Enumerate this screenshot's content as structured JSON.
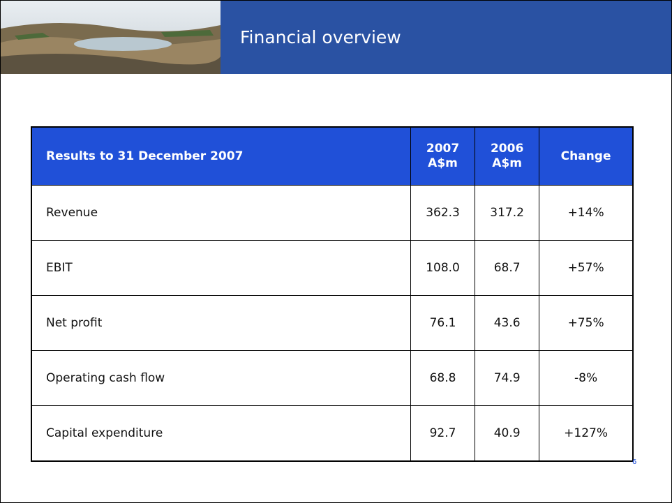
{
  "header": {
    "title": "Financial overview"
  },
  "table": {
    "columns": [
      "Results to 31 December 2007",
      "2007\nA$m",
      "2006\nA$m",
      "Change"
    ],
    "rows": [
      [
        "Revenue",
        "362.3",
        "317.2",
        "+14%"
      ],
      [
        "EBIT",
        "108.0",
        "68.7",
        "+57%"
      ],
      [
        "Net profit",
        "76.1",
        "43.6",
        "+75%"
      ],
      [
        "Operating cash flow",
        "68.8",
        "74.9",
        "-8%"
      ],
      [
        "Capital expenditure",
        "92.7",
        "40.9",
        "+127%"
      ]
    ]
  },
  "page_number": "6"
}
